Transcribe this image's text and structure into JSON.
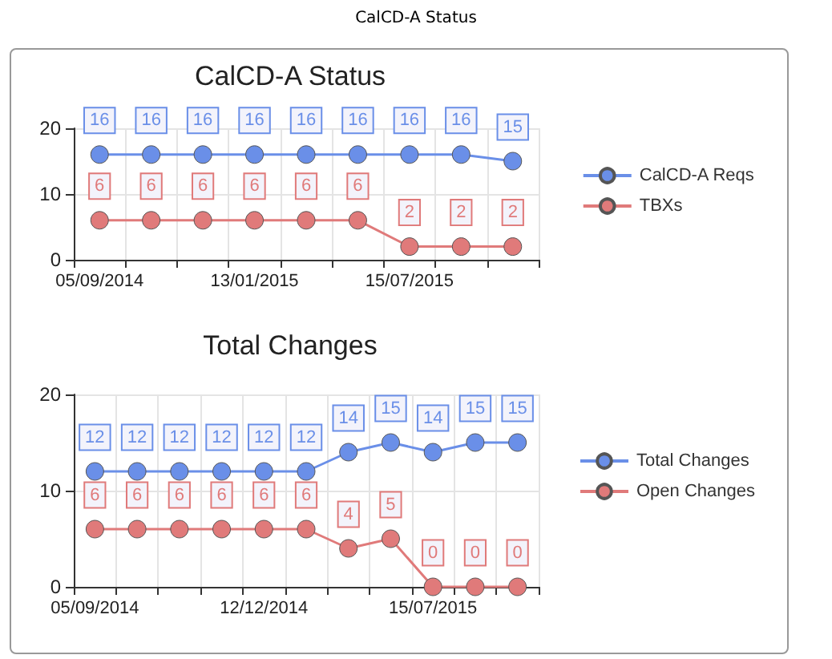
{
  "chart_data": [
    {
      "type": "line",
      "title": "CalCD-A Status",
      "annotations": [
        "CalCD-A Status"
      ],
      "categories": [
        "05/09/2014",
        null,
        null,
        "13/01/2015",
        null,
        null,
        "15/07/2015",
        null,
        null
      ],
      "series": [
        {
          "name": "CalCD-A Reqs",
          "color": "#6a8fe8",
          "values": [
            16,
            16,
            16,
            16,
            16,
            16,
            16,
            16,
            15
          ]
        },
        {
          "name": "TBXs",
          "color": "#e07a7a",
          "values": [
            6,
            6,
            6,
            6,
            6,
            6,
            2,
            2,
            2
          ]
        }
      ],
      "ylim": [
        0,
        20
      ],
      "yticks": [
        0,
        10,
        20
      ],
      "grid": true,
      "legend": "right",
      "marker": "circle",
      "data_labels": true
    },
    {
      "type": "line",
      "title": "Total Changes",
      "categories": [
        "05/09/2014",
        null,
        null,
        null,
        "12/12/2014",
        null,
        null,
        null,
        "15/07/2015",
        null,
        null
      ],
      "series": [
        {
          "name": "Total Changes",
          "color": "#6a8fe8",
          "values": [
            12,
            12,
            12,
            12,
            12,
            12,
            14,
            15,
            14,
            15,
            15
          ]
        },
        {
          "name": "Open Changes",
          "color": "#e07a7a",
          "values": [
            6,
            6,
            6,
            6,
            6,
            6,
            4,
            5,
            0,
            0,
            0
          ]
        }
      ],
      "ylim": [
        0,
        20
      ],
      "yticks": [
        0,
        10,
        20
      ],
      "grid": true,
      "legend": "right",
      "marker": "circle",
      "data_labels": true
    }
  ]
}
